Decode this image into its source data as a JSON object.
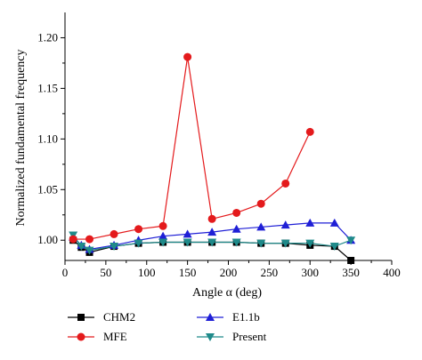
{
  "chart_data": {
    "type": "line",
    "title": "",
    "xlabel": "Angle α (deg)",
    "ylabel": "Normalized fundamental frequency",
    "xlim": [
      0,
      400
    ],
    "ylim": [
      0.98,
      1.225
    ],
    "x_ticks": [
      0,
      50,
      100,
      150,
      200,
      250,
      300,
      350,
      400
    ],
    "y_ticks": [
      1.0,
      1.05,
      1.1,
      1.15,
      1.2
    ],
    "x_tick_labels": [
      "0",
      "50",
      "100",
      "150",
      "200",
      "250",
      "300",
      "350",
      "400"
    ],
    "y_tick_labels": [
      "1.00",
      "1.05",
      "1.10",
      "1.15",
      "1.20"
    ],
    "grid": false,
    "legend_position": "bottom",
    "series": [
      {
        "name": "CHM2",
        "color": "#000000",
        "marker": "square",
        "x": [
          10,
          20,
          30,
          60,
          90,
          120,
          150,
          180,
          210,
          240,
          270,
          300,
          330,
          350
        ],
        "y": [
          1.0,
          0.993,
          0.988,
          0.994,
          0.997,
          0.998,
          0.998,
          0.998,
          0.998,
          0.997,
          0.997,
          0.995,
          0.994,
          0.98
        ]
      },
      {
        "name": "MFE",
        "color": "#e41a1c",
        "marker": "circle",
        "x": [
          10,
          30,
          60,
          90,
          120,
          150,
          180,
          210,
          240,
          270,
          300
        ],
        "y": [
          1.001,
          1.001,
          1.006,
          1.011,
          1.014,
          1.181,
          1.021,
          1.027,
          1.036,
          1.056,
          1.107
        ]
      },
      {
        "name": "E1.1b",
        "color": "#1f1fd6",
        "marker": "triangle-up",
        "x": [
          10,
          20,
          30,
          60,
          90,
          120,
          150,
          180,
          210,
          240,
          270,
          300,
          330,
          350
        ],
        "y": [
          1.003,
          0.995,
          0.991,
          0.995,
          1.0,
          1.004,
          1.006,
          1.008,
          1.011,
          1.013,
          1.015,
          1.017,
          1.017,
          1.0
        ]
      },
      {
        "name": "Present",
        "color": "#1f8a8a",
        "marker": "triangle-down",
        "x": [
          10,
          20,
          30,
          60,
          90,
          120,
          150,
          180,
          210,
          240,
          270,
          300,
          330,
          350
        ],
        "y": [
          1.005,
          0.994,
          0.99,
          0.994,
          0.997,
          0.998,
          0.998,
          0.998,
          0.998,
          0.997,
          0.997,
          0.997,
          0.994,
          1.0
        ]
      }
    ]
  }
}
